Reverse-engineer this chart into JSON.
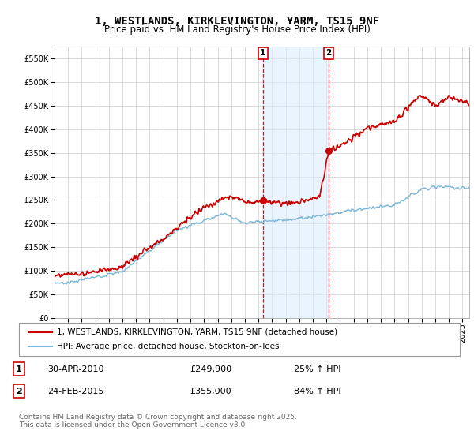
{
  "title": "1, WESTLANDS, KIRKLEVINGTON, YARM, TS15 9NF",
  "subtitle": "Price paid vs. HM Land Registry's House Price Index (HPI)",
  "ylim": [
    0,
    575000
  ],
  "yticks": [
    0,
    50000,
    100000,
    150000,
    200000,
    250000,
    300000,
    350000,
    400000,
    450000,
    500000,
    550000
  ],
  "xlim_start": 1995.0,
  "xlim_end": 2025.5,
  "purchase1_x": 2010.33,
  "purchase1_y": 249900,
  "purchase1_label": "1",
  "purchase1_date": "30-APR-2010",
  "purchase1_price": "£249,900",
  "purchase1_hpi": "25% ↑ HPI",
  "purchase2_x": 2015.15,
  "purchase2_y": 355000,
  "purchase2_label": "2",
  "purchase2_date": "24-FEB-2015",
  "purchase2_price": "£355,000",
  "purchase2_hpi": "84% ↑ HPI",
  "line1_color": "#cc0000",
  "line2_color": "#7ab8d9",
  "shade_color": "#ddeeff",
  "grid_color": "#cccccc",
  "background_color": "#ffffff",
  "legend1_label": "1, WESTLANDS, KIRKLEVINGTON, YARM, TS15 9NF (detached house)",
  "legend2_label": "HPI: Average price, detached house, Stockton-on-Tees",
  "footer": "Contains HM Land Registry data © Crown copyright and database right 2025.\nThis data is licensed under the Open Government Licence v3.0.",
  "title_fontsize": 10,
  "tick_fontsize": 7,
  "legend_fontsize": 7.5
}
